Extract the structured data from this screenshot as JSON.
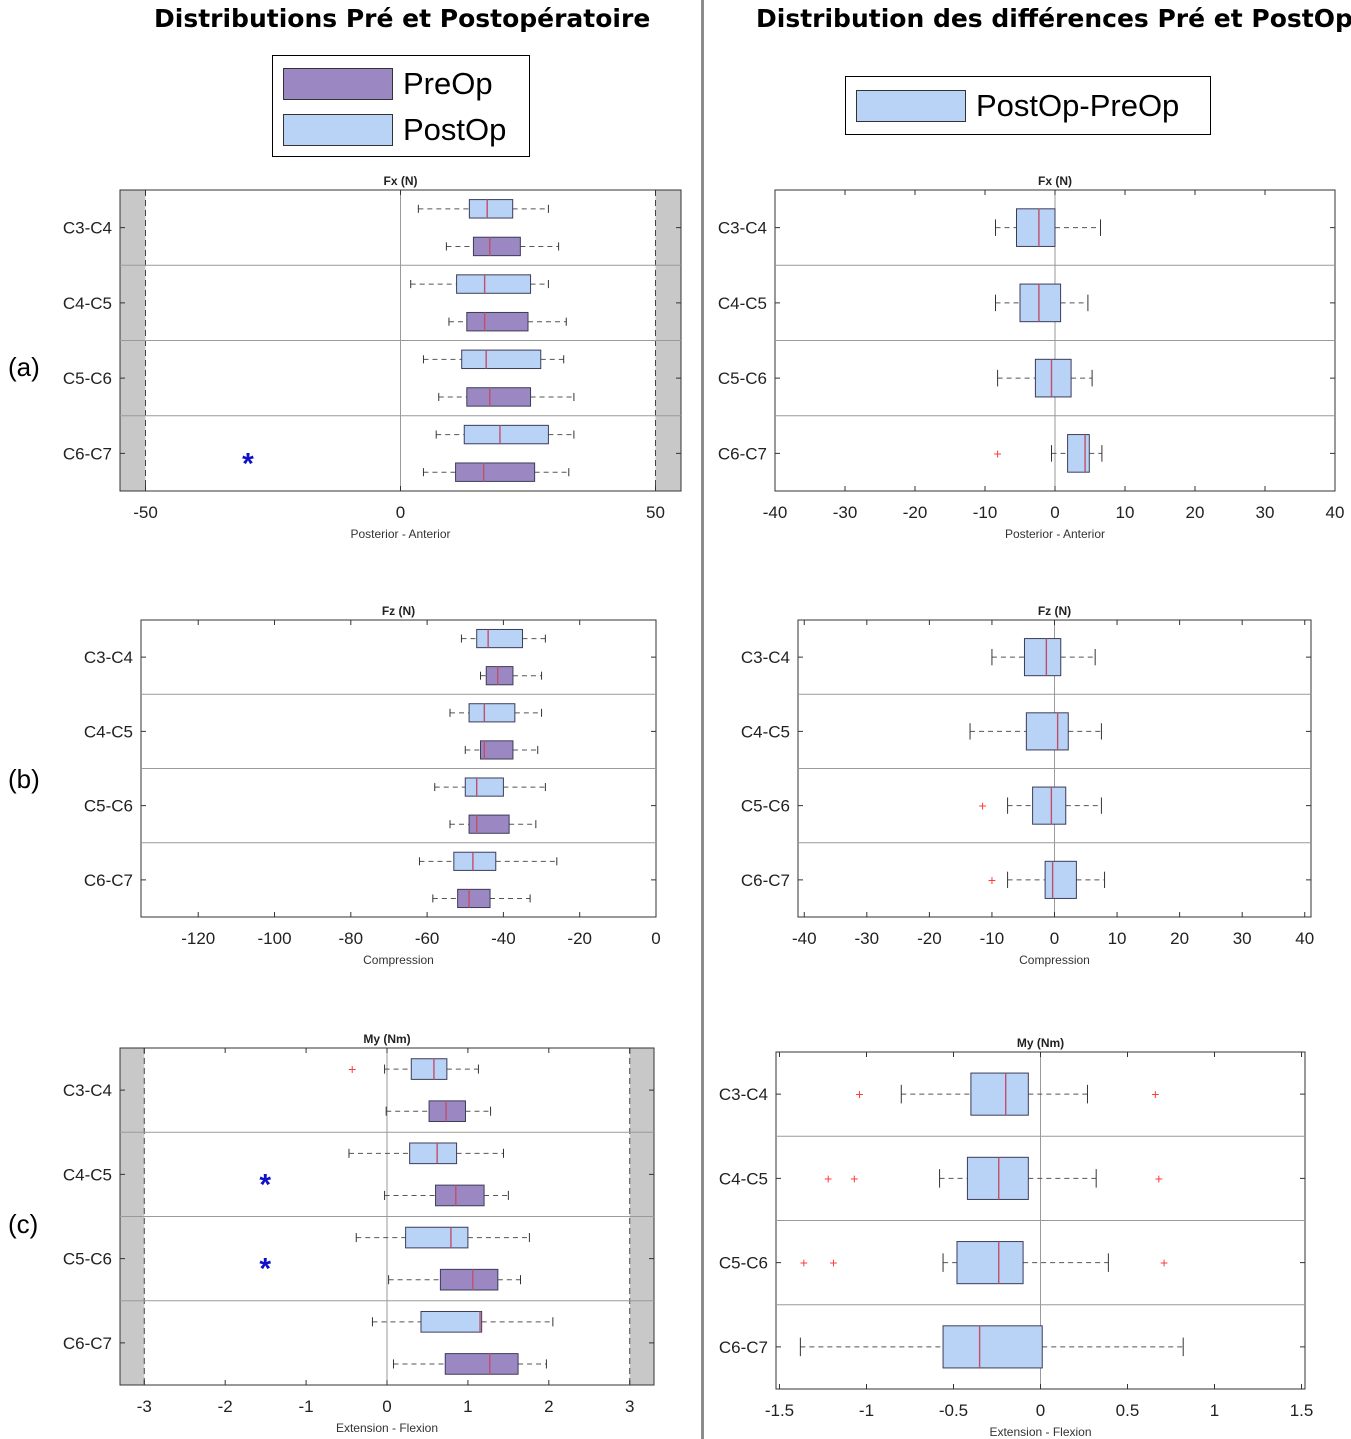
{
  "titles": {
    "left": "Distributions Pré et Postopératoire",
    "right": "Distribution des différences Pré et PostOp"
  },
  "legend_left": [
    {
      "label": "PreOp",
      "color": "#9b88c2"
    },
    {
      "label": "PostOp",
      "color": "#b9d3f7"
    }
  ],
  "legend_right": [
    {
      "label": "PostOp-PreOp",
      "color": "#b9d3f7"
    }
  ],
  "panel_labels": [
    "(a)",
    "(b)",
    "(c)"
  ],
  "colors": {
    "preop": "#9b88c2",
    "postop": "#b9d3f7",
    "median": "#c0506a",
    "outlier": "#ff3b3b",
    "asterisk": "#1010c8",
    "shade": "#c8c8c8"
  },
  "chart_data": [
    {
      "type": "boxplot",
      "title": "Fx (N)",
      "xlabel": "Posterior  -  Anterior",
      "xlim": [
        -55,
        55
      ],
      "xticks": [
        -50,
        0,
        50
      ],
      "shaded": [
        [
          -55,
          -50
        ],
        [
          50,
          55
        ]
      ],
      "categories": [
        "C3-C4",
        "C4-C5",
        "C5-C6",
        "C6-C7"
      ],
      "series": [
        {
          "name": "PostOp",
          "boxes": [
            {
              "min": 3.5,
              "q1": 13.5,
              "median": 17,
              "q3": 22,
              "max": 29,
              "outliers": []
            },
            {
              "min": 2,
              "q1": 11,
              "median": 16.5,
              "q3": 25.5,
              "max": 29,
              "outliers": []
            },
            {
              "min": 4.5,
              "q1": 12,
              "median": 16.8,
              "q3": 27.5,
              "max": 32,
              "outliers": []
            },
            {
              "min": 7,
              "q1": 12.5,
              "median": 19.5,
              "q3": 29,
              "max": 34,
              "outliers": []
            }
          ]
        },
        {
          "name": "PreOp",
          "boxes": [
            {
              "min": 9,
              "q1": 14.3,
              "median": 17.5,
              "q3": 23.5,
              "max": 31,
              "outliers": []
            },
            {
              "min": 9.5,
              "q1": 13,
              "median": 16.5,
              "q3": 25,
              "max": 32.5,
              "outliers": []
            },
            {
              "min": 7.5,
              "q1": 13,
              "median": 17.5,
              "q3": 25.5,
              "max": 34,
              "outliers": []
            },
            {
              "min": 4.5,
              "q1": 10.8,
              "median": 16.3,
              "q3": 26.3,
              "max": 33,
              "outliers": []
            }
          ]
        }
      ],
      "significant": [
        "C6-C7"
      ]
    },
    {
      "type": "boxplot",
      "title": "Fz (N)",
      "xlabel": "Compression",
      "xlim": [
        -135,
        0
      ],
      "xticks": [
        -120,
        -100,
        -80,
        -60,
        -40,
        -20,
        0
      ],
      "shaded": [],
      "categories": [
        "C3-C4",
        "C4-C5",
        "C5-C6",
        "C6-C7"
      ],
      "series": [
        {
          "name": "PostOp",
          "boxes": [
            {
              "min": -51,
              "q1": -47,
              "median": -44,
              "q3": -35,
              "max": -29,
              "outliers": []
            },
            {
              "min": -54,
              "q1": -49,
              "median": -45,
              "q3": -37,
              "max": -30,
              "outliers": []
            },
            {
              "min": -58,
              "q1": -50,
              "median": -47,
              "q3": -40,
              "max": -29,
              "outliers": []
            },
            {
              "min": -62,
              "q1": -53,
              "median": -48,
              "q3": -42,
              "max": -26,
              "outliers": []
            }
          ]
        },
        {
          "name": "PreOp",
          "boxes": [
            {
              "min": -46,
              "q1": -44.5,
              "median": -41.5,
              "q3": -37.5,
              "max": -30,
              "outliers": []
            },
            {
              "min": -50,
              "q1": -46,
              "median": -45,
              "q3": -37.5,
              "max": -31,
              "outliers": []
            },
            {
              "min": -54,
              "q1": -49,
              "median": -47,
              "q3": -38.5,
              "max": -31.5,
              "outliers": []
            },
            {
              "min": -58.5,
              "q1": -52,
              "median": -49,
              "q3": -43.5,
              "max": -33,
              "outliers": []
            }
          ]
        }
      ],
      "significant": []
    },
    {
      "type": "boxplot",
      "title": "My (Nm)",
      "xlabel": "Extension - Flexion",
      "xlim": [
        -3.3,
        3.3
      ],
      "xticks": [
        -3,
        -2,
        -1,
        0,
        1,
        2,
        3
      ],
      "shaded": [
        [
          -3.3,
          -3
        ],
        [
          3,
          3.3
        ]
      ],
      "categories": [
        "C3-C4",
        "C4-C5",
        "C5-C6",
        "C6-C7"
      ],
      "series": [
        {
          "name": "PostOp",
          "boxes": [
            {
              "min": -0.03,
              "q1": 0.3,
              "median": 0.58,
              "q3": 0.74,
              "max": 1.13,
              "outliers": [
                -0.43
              ]
            },
            {
              "min": -0.47,
              "q1": 0.28,
              "median": 0.62,
              "q3": 0.86,
              "max": 1.44,
              "outliers": []
            },
            {
              "min": -0.38,
              "q1": 0.23,
              "median": 0.79,
              "q3": 1.0,
              "max": 1.76,
              "outliers": []
            },
            {
              "min": -0.18,
              "q1": 0.42,
              "median": 1.15,
              "q3": 1.17,
              "max": 2.05,
              "outliers": []
            }
          ]
        },
        {
          "name": "PreOp",
          "boxes": [
            {
              "min": -0.01,
              "q1": 0.52,
              "median": 0.73,
              "q3": 0.97,
              "max": 1.28,
              "outliers": []
            },
            {
              "min": -0.03,
              "q1": 0.6,
              "median": 0.85,
              "q3": 1.2,
              "max": 1.5,
              "outliers": []
            },
            {
              "min": 0.02,
              "q1": 0.66,
              "median": 1.06,
              "q3": 1.37,
              "max": 1.65,
              "outliers": []
            },
            {
              "min": 0.08,
              "q1": 0.72,
              "median": 1.27,
              "q3": 1.62,
              "max": 1.97,
              "outliers": []
            }
          ]
        }
      ],
      "significant": [
        "C4-C5",
        "C5-C6"
      ]
    },
    {
      "type": "boxplot",
      "title": "Fx (N)",
      "xlabel": "Posterior  -  Anterior",
      "xlim": [
        -40,
        40
      ],
      "xticks": [
        -40,
        -30,
        -20,
        -10,
        0,
        10,
        20,
        30,
        40
      ],
      "shaded": [],
      "categories": [
        "C3-C4",
        "C4-C5",
        "C5-C6",
        "C6-C7"
      ],
      "series": [
        {
          "name": "PostOp-PreOp",
          "boxes": [
            {
              "min": -8.5,
              "q1": -5.5,
              "median": -2.3,
              "q3": 0,
              "max": 6.5,
              "outliers": []
            },
            {
              "min": -8.5,
              "q1": -5,
              "median": -2.3,
              "q3": 0.8,
              "max": 4.7,
              "outliers": []
            },
            {
              "min": -8.2,
              "q1": -2.8,
              "median": -0.5,
              "q3": 2.3,
              "max": 5.3,
              "outliers": []
            },
            {
              "min": -0.5,
              "q1": 1.8,
              "median": 4.3,
              "q3": 4.9,
              "max": 6.7,
              "outliers": [
                -8.2
              ]
            }
          ]
        }
      ],
      "significant": []
    },
    {
      "type": "boxplot",
      "title": "Fz (N)",
      "xlabel": "Compression",
      "xlim": [
        -41,
        41
      ],
      "xticks": [
        -40,
        -30,
        -20,
        -10,
        0,
        10,
        20,
        30,
        40
      ],
      "shaded": [],
      "categories": [
        "C3-C4",
        "C4-C5",
        "C5-C6",
        "C6-C7"
      ],
      "series": [
        {
          "name": "PostOp-PreOp",
          "boxes": [
            {
              "min": -10,
              "q1": -4.8,
              "median": -1.3,
              "q3": 1,
              "max": 6.5,
              "outliers": []
            },
            {
              "min": -13.5,
              "q1": -4.5,
              "median": 0.5,
              "q3": 2.2,
              "max": 7.5,
              "outliers": []
            },
            {
              "min": -7.5,
              "q1": -3.5,
              "median": -0.5,
              "q3": 1.8,
              "max": 7.5,
              "outliers": [
                -11.5
              ]
            },
            {
              "min": -7.5,
              "q1": -1.5,
              "median": -0.3,
              "q3": 3.5,
              "max": 8,
              "outliers": [
                -10
              ]
            }
          ]
        }
      ],
      "significant": []
    },
    {
      "type": "boxplot",
      "title": "My (Nm)",
      "xlabel": "Extension - Flexion",
      "xlim": [
        -1.52,
        1.52
      ],
      "xticks": [
        -1.5,
        -1,
        -0.5,
        0,
        0.5,
        1,
        1.5
      ],
      "shaded": [],
      "categories": [
        "C3-C4",
        "C4-C5",
        "C5-C6",
        "C6-C7"
      ],
      "series": [
        {
          "name": "PostOp-PreOp",
          "boxes": [
            {
              "min": -0.8,
              "q1": -0.4,
              "median": -0.2,
              "q3": -0.07,
              "max": 0.27,
              "outliers": [
                -1.04,
                0.66
              ]
            },
            {
              "min": -0.58,
              "q1": -0.42,
              "median": -0.24,
              "q3": -0.07,
              "max": 0.32,
              "outliers": [
                -1.22,
                -1.07,
                0.68
              ]
            },
            {
              "min": -0.56,
              "q1": -0.48,
              "median": -0.24,
              "q3": -0.1,
              "max": 0.39,
              "outliers": [
                -1.36,
                -1.19,
                0.71
              ]
            },
            {
              "min": -1.38,
              "q1": -0.56,
              "median": -0.35,
              "q3": 0.01,
              "max": 0.82,
              "outliers": []
            }
          ]
        }
      ],
      "significant": []
    }
  ]
}
